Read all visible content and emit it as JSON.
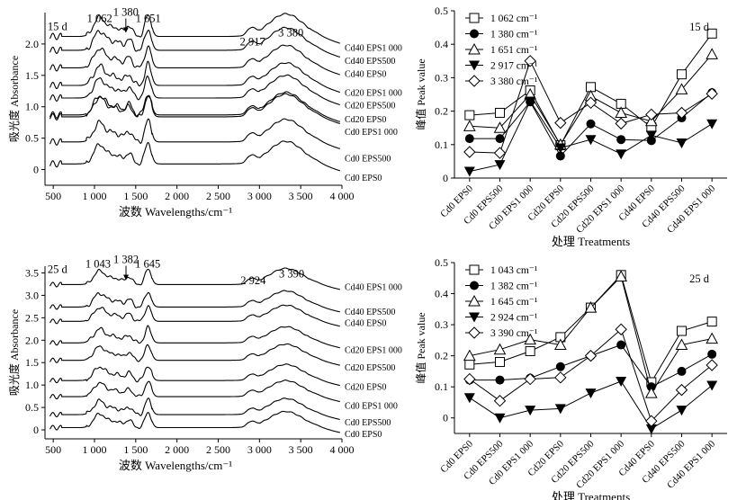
{
  "chart_data": [
    {
      "id": "ftir15",
      "type": "line",
      "title": "",
      "xlabel": "波数 Wavelengths/cm⁻¹",
      "ylabel": "吸光度 Absorbance",
      "xlim": [
        400,
        4000
      ],
      "ylim": [
        -0.25,
        2.5
      ],
      "xticks": [
        "500",
        "1 000",
        "1 500",
        "2 000",
        "2 500",
        "3 000",
        "3 500",
        "4 000"
      ],
      "xtick_values": [
        500,
        1000,
        1500,
        2000,
        2500,
        3000,
        3500,
        4000
      ],
      "yticks": [
        "0",
        "0.5",
        "1.0",
        "1.5",
        "2.0"
      ],
      "ytick_values": [
        0,
        0.5,
        1.0,
        1.5,
        2.0
      ],
      "annotations": [
        {
          "text": "15 d",
          "x": 550,
          "y": 2.22
        },
        {
          "text": "1 062",
          "x": 1062,
          "y": 2.35
        },
        {
          "text": "1 380",
          "x": 1380,
          "y": 2.45,
          "arrow": true
        },
        {
          "text": "1 651",
          "x": 1651,
          "y": 2.35
        },
        {
          "text": "2 917",
          "x": 2917,
          "y": 1.98
        },
        {
          "text": "3 380",
          "x": 3380,
          "y": 2.12
        }
      ],
      "series": [
        {
          "name": "Cd40 EPS1 000",
          "offset": 2.0,
          "label_y": 1.95
        },
        {
          "name": "Cd40 EPS500",
          "offset": 1.78,
          "label_y": 1.74
        },
        {
          "name": "Cd40 EPS0",
          "offset": 1.5,
          "label_y": 1.53
        },
        {
          "name": "Cd20 EPS1 000",
          "offset": 1.22,
          "label_y": 1.23
        },
        {
          "name": "Cd20 EPS500",
          "offset": 1.02,
          "label_y": 1.03
        },
        {
          "name": "Cd20 EPS0",
          "offset": 0.75,
          "label_y": 0.81
        },
        {
          "name": "Cd0 EPS1 000",
          "offset": 0.72,
          "label_y": 0.61
        },
        {
          "name": "Cd0 EPS500",
          "offset": 0.32,
          "label_y": 0.19
        },
        {
          "name": "Cd0 EPS0",
          "offset": -0.03,
          "label_y": -0.12
        }
      ]
    },
    {
      "id": "peak15",
      "type": "line",
      "title": "",
      "xlabel": "处理 Treatments",
      "ylabel": "峰值 Peak value",
      "ylim": [
        0,
        0.5
      ],
      "yticks": [
        "0",
        "0.1",
        "0.2",
        "0.3",
        "0.4",
        "0.5"
      ],
      "ytick_values": [
        0,
        0.1,
        0.2,
        0.3,
        0.4,
        0.5
      ],
      "categories": [
        "Cd0 EPS0",
        "Cd0 EPS500",
        "Cd0 EPS1 000",
        "Cd20 EPS0",
        "Cd20 EPS500",
        "Cd20 EPS1 000",
        "Cd40 EPS0",
        "Cd40 EPS500",
        "Cd40 EPS1 000"
      ],
      "annotations": [
        {
          "text": "15 d"
        }
      ],
      "legend": "top-left",
      "series": [
        {
          "name": "1 062 cm⁻¹",
          "marker": "square",
          "values": [
            0.188,
            0.195,
            0.262,
            0.098,
            0.272,
            0.222,
            0.152,
            0.31,
            0.432
          ]
        },
        {
          "name": "1 380 cm⁻¹",
          "marker": "circle",
          "values": [
            0.118,
            0.118,
            0.228,
            0.066,
            0.162,
            0.115,
            0.112,
            0.18,
            0.255
          ]
        },
        {
          "name": "1 651 cm⁻¹",
          "marker": "triangle-up",
          "values": [
            0.155,
            0.15,
            0.25,
            0.1,
            0.245,
            0.195,
            0.17,
            0.265,
            0.37
          ]
        },
        {
          "name": "2 917 cm⁻¹",
          "marker": "triangle-down",
          "values": [
            0.02,
            0.04,
            0.23,
            0.09,
            0.115,
            0.072,
            0.128,
            0.105,
            0.162
          ]
        },
        {
          "name": "3 380 cm⁻¹",
          "marker": "diamond",
          "values": [
            0.078,
            0.075,
            0.35,
            0.165,
            0.225,
            0.163,
            0.19,
            0.195,
            0.252
          ]
        }
      ]
    },
    {
      "id": "ftir25",
      "type": "line",
      "title": "",
      "xlabel": "波数 Wavelengths/cm⁻¹",
      "ylabel": "吸光度 Absorbance",
      "xlim": [
        400,
        4000
      ],
      "ylim": [
        -0.2,
        3.65
      ],
      "xticks": [
        "500",
        "1 000",
        "1 500",
        "2 000",
        "2 500",
        "3 000",
        "3 500",
        "4 000"
      ],
      "xtick_values": [
        500,
        1000,
        1500,
        2000,
        2500,
        3000,
        3500,
        4000
      ],
      "yticks": [
        "0",
        "0.5",
        "1.0",
        "1.5",
        "2.0",
        "2.5",
        "3.0",
        "3.5"
      ],
      "ytick_values": [
        0,
        0.5,
        1.0,
        1.5,
        2.0,
        2.5,
        3.0,
        3.5
      ],
      "annotations": [
        {
          "text": "25 d",
          "x": 550,
          "y": 3.5
        },
        {
          "text": "1 043",
          "x": 1043,
          "y": 3.62
        },
        {
          "text": "1 382",
          "x": 1382,
          "y": 3.72,
          "arrow": true
        },
        {
          "text": "1 645",
          "x": 1645,
          "y": 3.62
        },
        {
          "text": "2 924",
          "x": 2924,
          "y": 3.25
        },
        {
          "text": "3 390",
          "x": 3390,
          "y": 3.4
        }
      ],
      "series": [
        {
          "name": "Cd40 EPS1 000",
          "offset": 3.12,
          "label_y": 3.2
        },
        {
          "name": "Cd40 EPS500",
          "offset": 2.62,
          "label_y": 2.65
        },
        {
          "name": "Cd40 EPS0",
          "offset": 2.3,
          "label_y": 2.4
        },
        {
          "name": "Cd20 EPS1 000",
          "offset": 1.82,
          "label_y": 1.8
        },
        {
          "name": "Cd20 EPS500",
          "offset": 1.43,
          "label_y": 1.4
        },
        {
          "name": "Cd20 EPS0",
          "offset": 0.98,
          "label_y": 0.97
        },
        {
          "name": "Cd0 EPS1 000",
          "offset": 0.62,
          "label_y": 0.55
        },
        {
          "name": "Cd0 EPS500",
          "offset": 0.22,
          "label_y": 0.18
        },
        {
          "name": "Cd0 EPS0",
          "offset": -0.07,
          "label_y": -0.08
        }
      ]
    },
    {
      "id": "peak25",
      "type": "line",
      "title": "",
      "xlabel": "处理 Treatments",
      "ylabel": "峰值 Peak value",
      "ylim": [
        -0.05,
        0.5
      ],
      "yticks": [
        "0",
        "0.1",
        "0.2",
        "0.3",
        "0.4",
        "0.5"
      ],
      "ytick_values": [
        0,
        0.1,
        0.2,
        0.3,
        0.4,
        0.5
      ],
      "categories": [
        "Cd0 EPS0",
        "Cd0 EPS500",
        "Cd0 EPS1 000",
        "Cd20 EPS0",
        "Cd20 EPS500",
        "Cd20 EPS1 000",
        "Cd40 EPS0",
        "Cd40 EPS500",
        "Cd40 EPS1 000"
      ],
      "annotations": [
        {
          "text": "25 d"
        }
      ],
      "legend": "top-left",
      "series": [
        {
          "name": "1 043 cm⁻¹",
          "marker": "square",
          "values": [
            0.172,
            0.18,
            0.215,
            0.26,
            0.355,
            0.46,
            0.115,
            0.28,
            0.31
          ]
        },
        {
          "name": "1 382 cm⁻¹",
          "marker": "circle",
          "values": [
            0.122,
            0.122,
            0.128,
            0.165,
            0.2,
            0.235,
            0.1,
            0.15,
            0.205
          ]
        },
        {
          "name": "1 645 cm⁻¹",
          "marker": "triangle-up",
          "values": [
            0.2,
            0.22,
            0.252,
            0.235,
            0.355,
            0.455,
            0.08,
            0.235,
            0.255
          ]
        },
        {
          "name": "2 924 cm⁻¹",
          "marker": "triangle-down",
          "values": [
            0.065,
            0.0,
            0.025,
            0.03,
            0.08,
            0.118,
            -0.035,
            0.025,
            0.105
          ]
        },
        {
          "name": "3 390 cm⁻¹",
          "marker": "diamond",
          "values": [
            0.125,
            0.055,
            0.125,
            0.13,
            0.2,
            0.285,
            -0.01,
            0.09,
            0.17
          ]
        }
      ]
    }
  ]
}
